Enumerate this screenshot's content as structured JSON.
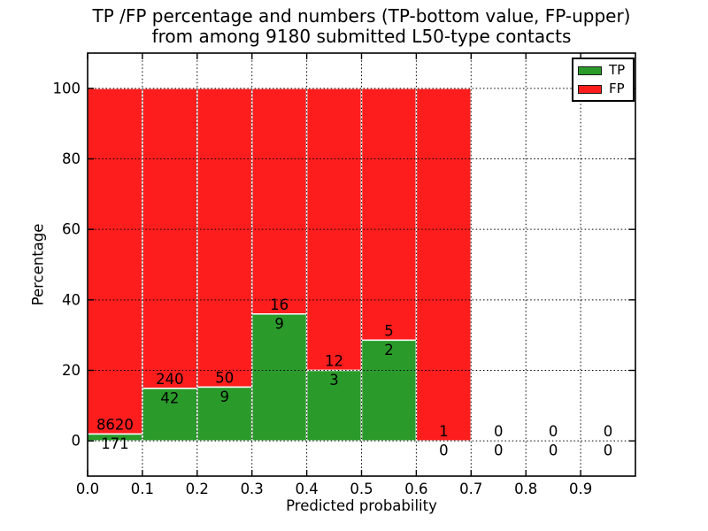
{
  "chart_data": {
    "type": "bar",
    "variant": "stacked-percentage-histogram",
    "title": "TP /FP percentage and numbers (TP-bottom value, FP-upper) from among 9180 submitted L50-type contacts",
    "title_lines": [
      "TP /FP percentage and numbers (TP-bottom value, FP-upper)",
      "from among 9180 submitted L50-type contacts"
    ],
    "xlabel": "Predicted probability",
    "ylabel": "Percentage",
    "total_submitted": 9180,
    "xlim": [
      0.0,
      1.0
    ],
    "ylim": [
      -10,
      110
    ],
    "grid": true,
    "xtick_values": [
      0.0,
      0.1,
      0.2,
      0.3,
      0.4,
      0.5,
      0.6,
      0.7,
      0.8,
      0.9
    ],
    "xtick_labels": [
      "0.0",
      "0.1",
      "0.2",
      "0.3",
      "0.4",
      "0.5",
      "0.6",
      "0.7",
      "0.8",
      "0.9"
    ],
    "ytick_values": [
      0,
      20,
      40,
      60,
      80,
      100
    ],
    "ytick_labels": [
      "0",
      "20",
      "40",
      "60",
      "80",
      "100"
    ],
    "bins": [
      {
        "range": [
          0.0,
          0.1
        ],
        "tp": 171,
        "fp": 8620,
        "tp_percent": 1.95
      },
      {
        "range": [
          0.1,
          0.2
        ],
        "tp": 42,
        "fp": 240,
        "tp_percent": 14.89
      },
      {
        "range": [
          0.2,
          0.3
        ],
        "tp": 9,
        "fp": 50,
        "tp_percent": 15.25
      },
      {
        "range": [
          0.3,
          0.4
        ],
        "tp": 9,
        "fp": 16,
        "tp_percent": 36.0
      },
      {
        "range": [
          0.4,
          0.5
        ],
        "tp": 3,
        "fp": 12,
        "tp_percent": 20.0
      },
      {
        "range": [
          0.5,
          0.6
        ],
        "tp": 2,
        "fp": 5,
        "tp_percent": 28.57
      },
      {
        "range": [
          0.6,
          0.7
        ],
        "tp": 0,
        "fp": 1,
        "tp_percent": 0.0
      },
      {
        "range": [
          0.7,
          0.8
        ],
        "tp": 0,
        "fp": 0,
        "tp_percent": null
      },
      {
        "range": [
          0.8,
          0.9
        ],
        "tp": 0,
        "fp": 0,
        "tp_percent": null
      },
      {
        "range": [
          0.9,
          1.0
        ],
        "tp": 0,
        "fp": 0,
        "tp_percent": null
      }
    ],
    "legend": {
      "position": "upper-right",
      "entries": [
        {
          "label": "TP",
          "color": "#2a9b2a"
        },
        {
          "label": "FP",
          "color": "#fd1d1d"
        }
      ]
    },
    "colors": {
      "tp": "#2a9b2a",
      "fp": "#fd1d1d",
      "bar_edge": "#ffffff",
      "grid": "#000000",
      "frame": "#000000",
      "text": "#000000",
      "background": "#ffffff"
    }
  }
}
